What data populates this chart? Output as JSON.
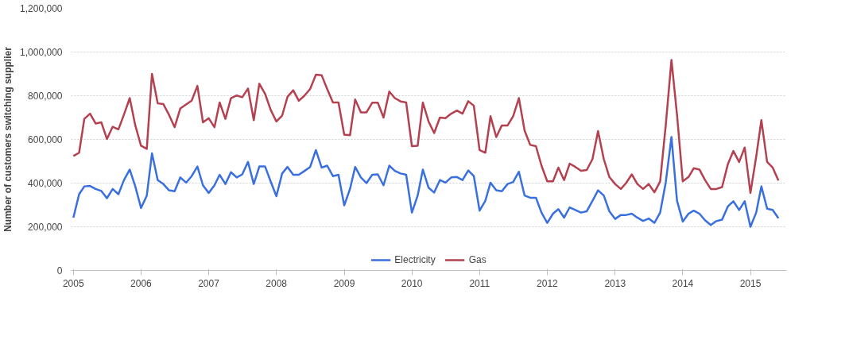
{
  "chart_data": {
    "type": "line",
    "ylabel": "Number of customers switching supplier",
    "x": [
      "2005-01",
      "2005-02",
      "2005-03",
      "2005-04",
      "2005-05",
      "2005-06",
      "2005-07",
      "2005-08",
      "2005-09",
      "2005-10",
      "2005-11",
      "2005-12",
      "2006-01",
      "2006-02",
      "2006-03",
      "2006-04",
      "2006-05",
      "2006-06",
      "2006-07",
      "2006-08",
      "2006-09",
      "2006-10",
      "2006-11",
      "2006-12",
      "2007-01",
      "2007-02",
      "2007-03",
      "2007-04",
      "2007-05",
      "2007-06",
      "2007-07",
      "2007-08",
      "2007-09",
      "2007-10",
      "2007-11",
      "2007-12",
      "2008-01",
      "2008-02",
      "2008-03",
      "2008-04",
      "2008-05",
      "2008-06",
      "2008-07",
      "2008-08",
      "2008-09",
      "2008-10",
      "2008-11",
      "2008-12",
      "2009-01",
      "2009-02",
      "2009-03",
      "2009-04",
      "2009-05",
      "2009-06",
      "2009-07",
      "2009-08",
      "2009-09",
      "2009-10",
      "2009-11",
      "2009-12",
      "2010-01",
      "2010-02",
      "2010-03",
      "2010-04",
      "2010-05",
      "2010-06",
      "2010-07",
      "2010-08",
      "2010-09",
      "2010-10",
      "2010-11",
      "2010-12",
      "2011-01",
      "2011-02",
      "2011-03",
      "2011-04",
      "2011-05",
      "2011-06",
      "2011-07",
      "2011-08",
      "2011-09",
      "2011-10",
      "2011-11",
      "2011-12",
      "2012-01",
      "2012-02",
      "2012-03",
      "2012-04",
      "2012-05",
      "2012-06",
      "2012-07",
      "2012-08",
      "2012-09",
      "2012-10",
      "2012-11",
      "2012-12",
      "2013-01",
      "2013-02",
      "2013-03",
      "2013-04",
      "2013-05",
      "2013-06",
      "2013-07",
      "2013-08",
      "2013-09",
      "2013-10",
      "2013-11",
      "2013-12",
      "2014-01",
      "2014-02",
      "2014-03",
      "2014-04",
      "2014-05",
      "2014-06",
      "2014-07",
      "2014-08",
      "2014-09",
      "2014-10",
      "2014-11",
      "2014-12",
      "2015-01",
      "2015-02",
      "2015-03",
      "2015-04",
      "2015-05",
      "2015-06"
    ],
    "series": [
      {
        "name": "Electricity",
        "color": "#3a6fe0",
        "values": [
          242000,
          349000,
          385000,
          387000,
          373000,
          364000,
          331000,
          373000,
          349000,
          414000,
          462000,
          385000,
          286000,
          343000,
          536000,
          414000,
          396000,
          367000,
          363000,
          426000,
          402000,
          432000,
          476000,
          390000,
          355000,
          390000,
          438000,
          396000,
          450000,
          426000,
          440000,
          497000,
          396000,
          476000,
          476000,
          408000,
          340000,
          444000,
          474000,
          438000,
          438000,
          456000,
          474000,
          551000,
          471000,
          480000,
          432000,
          438000,
          298000,
          373000,
          474000,
          426000,
          400000,
          438000,
          440000,
          390000,
          480000,
          456000,
          444000,
          438000,
          265000,
          343000,
          462000,
          379000,
          357000,
          414000,
          402000,
          426000,
          428000,
          414000,
          458000,
          432000,
          274000,
          319000,
          402000,
          367000,
          363000,
          396000,
          405000,
          452000,
          343000,
          333000,
          333000,
          265000,
          218000,
          260000,
          281000,
          242000,
          289000,
          277000,
          265000,
          271000,
          319000,
          367000,
          343000,
          271000,
          236000,
          254000,
          254000,
          260000,
          242000,
          227000,
          238000,
          218000,
          265000,
          402000,
          611000,
          319000,
          224000,
          260000,
          274000,
          260000,
          230000,
          208000,
          226000,
          233000,
          293000,
          317000,
          277000,
          317000,
          200000,
          265000,
          385000,
          283000,
          277000,
          239000
        ]
      },
      {
        "name": "Gas",
        "color": "#b5404f",
        "values": [
          524000,
          539000,
          694000,
          718000,
          673000,
          678000,
          602000,
          658000,
          646000,
          714000,
          789000,
          664000,
          571000,
          557000,
          900000,
          765000,
          762000,
          712000,
          656000,
          742000,
          760000,
          777000,
          845000,
          678000,
          697000,
          656000,
          769000,
          694000,
          789000,
          801000,
          793000,
          833000,
          688000,
          855000,
          809000,
          736000,
          682000,
          709000,
          795000,
          825000,
          777000,
          801000,
          831000,
          896000,
          894000,
          831000,
          769000,
          769000,
          622000,
          619000,
          783000,
          724000,
          724000,
          768000,
          768000,
          700000,
          819000,
          789000,
          774000,
          769000,
          569000,
          571000,
          769000,
          682000,
          629000,
          700000,
          697000,
          718000,
          732000,
          718000,
          775000,
          754000,
          551000,
          539000,
          706000,
          611000,
          664000,
          664000,
          706000,
          789000,
          640000,
          575000,
          569000,
          480000,
          408000,
          408000,
          471000,
          414000,
          489000,
          474000,
          456000,
          460000,
          510000,
          638000,
          510000,
          428000,
          396000,
          373000,
          400000,
          440000,
          396000,
          373000,
          396000,
          358000,
          408000,
          664000,
          964000,
          712000,
          408000,
          428000,
          468000,
          462000,
          414000,
          373000,
          373000,
          382000,
          486000,
          547000,
          497000,
          563000,
          355000,
          521000,
          688000,
          497000,
          471000,
          412000
        ]
      }
    ],
    "ylim": [
      0,
      1200000
    ],
    "yticks": [
      0,
      {
        "value": 200000,
        "label": "200,000"
      },
      {
        "value": 400000,
        "label": "400,000"
      },
      {
        "value": 600000,
        "label": "600,000"
      },
      {
        "value": 800000,
        "label": "800,000"
      },
      {
        "value": 1000000,
        "label": "1,000,000"
      },
      {
        "value": 1200000,
        "label": "1,200,000"
      }
    ],
    "xlim": [
      "2004-12-20",
      "2015-07-15"
    ],
    "xticks": [
      "2005",
      "2006",
      "2007",
      "2008",
      "2009",
      "2010",
      "2011",
      "2012",
      "2013",
      "2014",
      "2015"
    ],
    "grid": "y",
    "legend": "bottom",
    "line_style": "solid",
    "marker": "none"
  }
}
